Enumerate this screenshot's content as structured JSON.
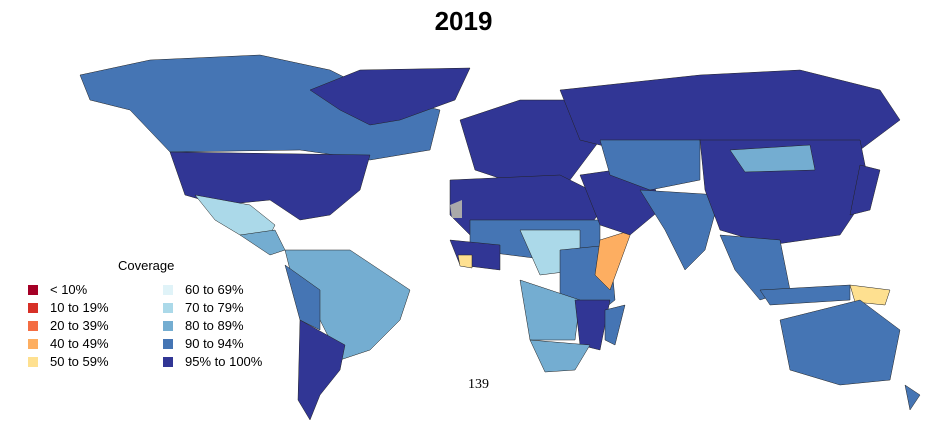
{
  "title": "2019",
  "legend": {
    "title": "Coverage",
    "items": [
      {
        "label": "< 10%",
        "color": "#a50026"
      },
      {
        "label": "10 to 19%",
        "color": "#d73027"
      },
      {
        "label": "20 to 39%",
        "color": "#f46d43"
      },
      {
        "label": "40 to 49%",
        "color": "#fdae61"
      },
      {
        "label": "50 to 59%",
        "color": "#fee090"
      },
      {
        "label": "60 to 69%",
        "color": "#e0f3f8"
      },
      {
        "label": "70 to 79%",
        "color": "#abd9e9"
      },
      {
        "label": "80 to 89%",
        "color": "#74add1"
      },
      {
        "label": "90 to 94%",
        "color": "#4575b4"
      },
      {
        "label": "95% to 100%",
        "color": "#313695"
      }
    ]
  },
  "footnote": "139",
  "no_data_color": "#aaaaaa"
}
